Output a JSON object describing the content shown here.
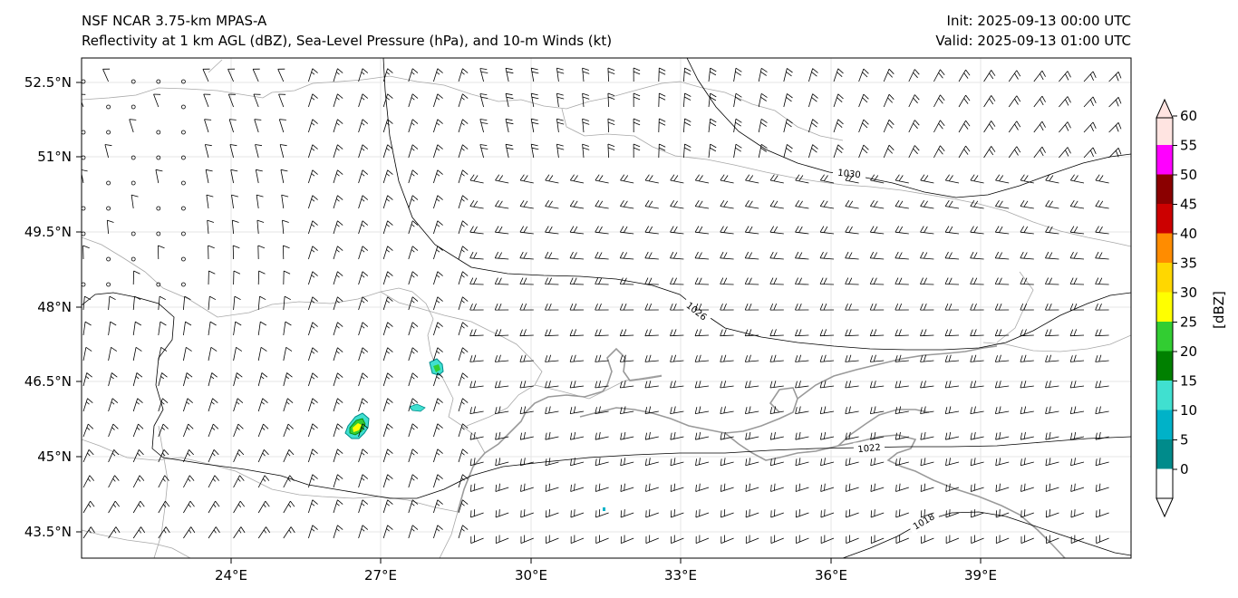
{
  "header": {
    "title_line1": "NSF NCAR 3.75-km MPAS-A",
    "title_line2": "Reflectivity at 1 km AGL (dBZ), Sea-Level Pressure (hPa), and 10-m Winds (kt)",
    "init": "Init: 2025-09-13 00:00 UTC",
    "valid": "Valid: 2025-09-13 01:00 UTC"
  },
  "axes": {
    "lat_labels": [
      "52.5°N",
      "51°N",
      "49.5°N",
      "48°N",
      "46.5°N",
      "45°N",
      "43.5°N"
    ],
    "lon_labels": [
      "24°E",
      "27°E",
      "30°E",
      "33°E",
      "36°E",
      "39°E"
    ]
  },
  "contours": [
    {
      "name": "isobar-1030",
      "label": "1030"
    },
    {
      "name": "isobar-1026",
      "label": "1026"
    },
    {
      "name": "isobar-1022",
      "label": "1022"
    },
    {
      "name": "isobar-1018",
      "label": "1018"
    }
  ],
  "colorbar": {
    "label": "[dBZ]",
    "ticks": [
      "0",
      "5",
      "10",
      "15",
      "20",
      "25",
      "30",
      "35",
      "40",
      "45",
      "50",
      "55",
      "60"
    ],
    "colors": [
      "#ffffff",
      "#008b8b",
      "#00b2c8",
      "#40e0d0",
      "#008000",
      "#32cd32",
      "#ffff00",
      "#ffd700",
      "#ff8c00",
      "#cc0000",
      "#8b0000",
      "#ff00ff",
      "#ffe4e1"
    ]
  }
}
